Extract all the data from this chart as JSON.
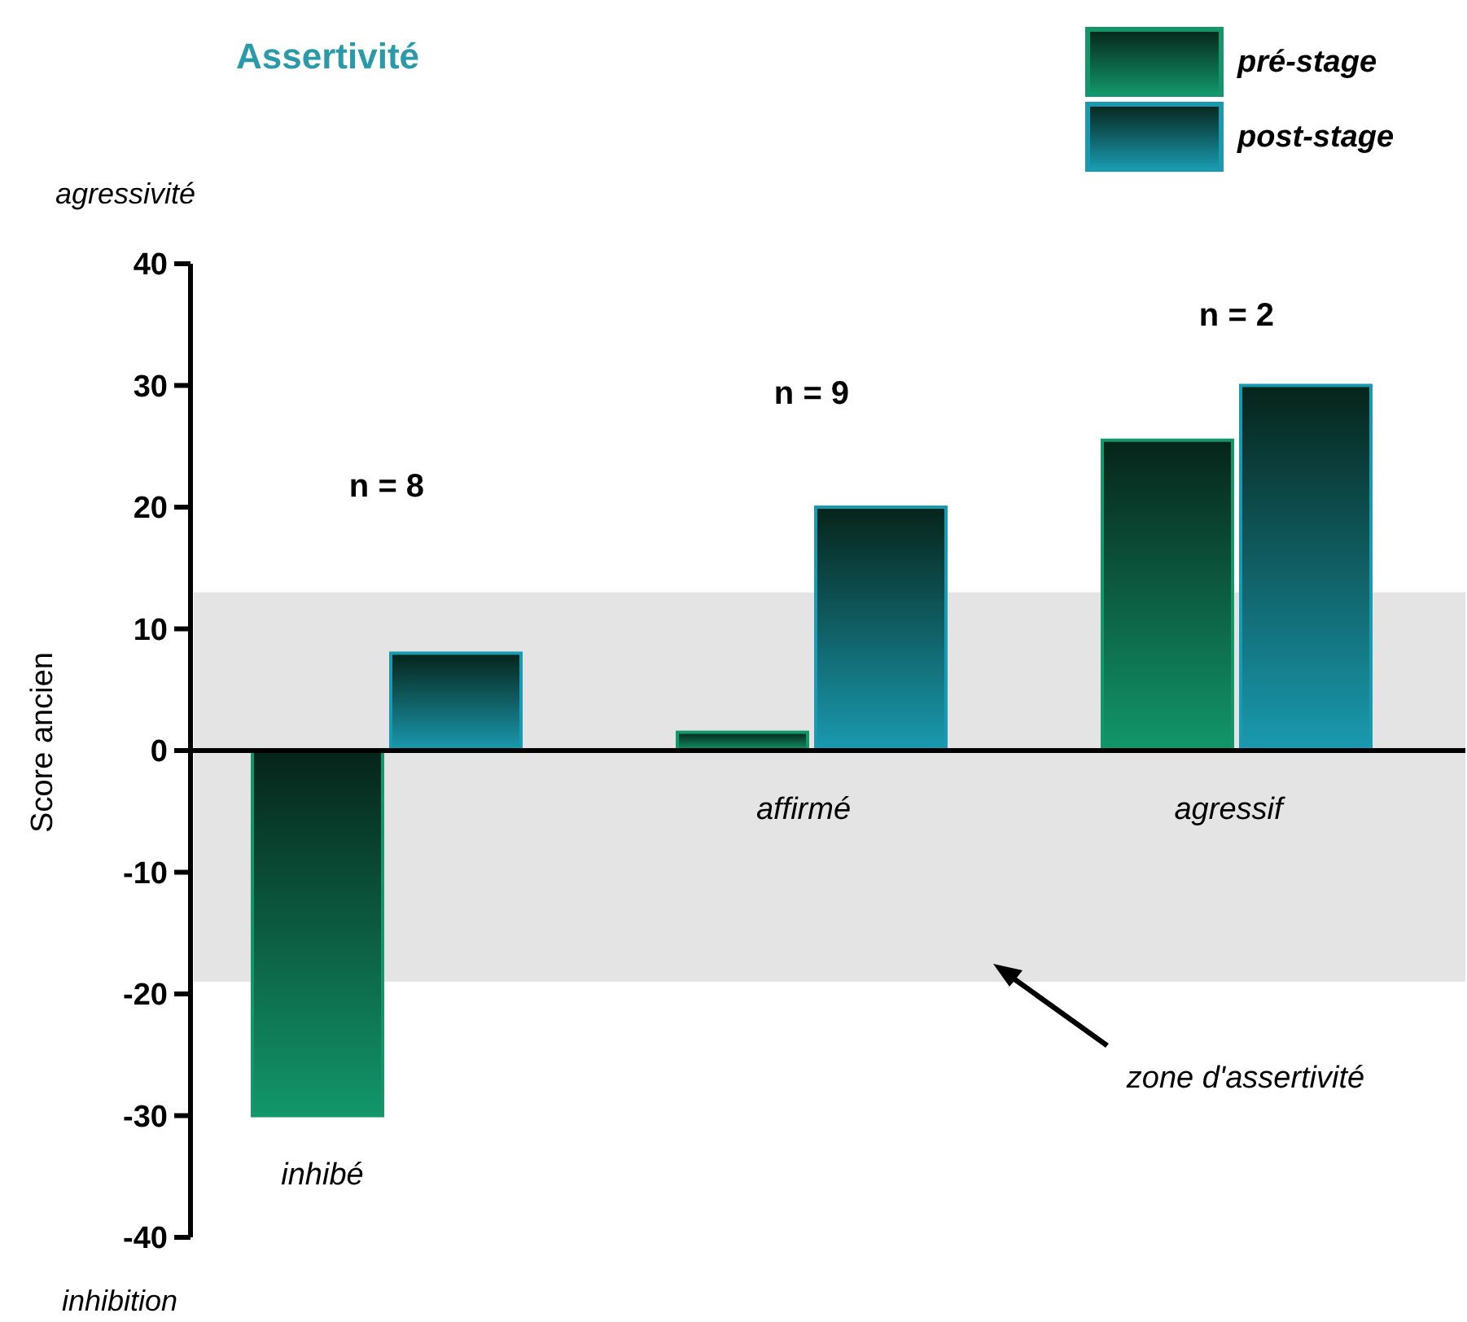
{
  "chart_data": {
    "type": "bar",
    "title": "Assertivité",
    "ylabel": "Score ancien",
    "categories": [
      "inhibé",
      "affirmé",
      "agressif"
    ],
    "series": [
      {
        "name": "pré-stage",
        "color": "#12966a",
        "values": [
          -30,
          1.5,
          25.5
        ]
      },
      {
        "name": "post-stage",
        "color": "#1a9ab0",
        "values": [
          8,
          20,
          30
        ]
      }
    ],
    "ylim": [
      -40,
      40
    ],
    "yticks": [
      -40,
      -30,
      -20,
      -10,
      0,
      10,
      20,
      30,
      40
    ],
    "bands": [
      {
        "axis": "y",
        "from": -19,
        "to": 13,
        "color": "#e4e4e4",
        "label": "zone d'assertivité"
      }
    ],
    "annotations": [
      "n = 8",
      "n = 9",
      "n = 2",
      "agressivité",
      "inhibition"
    ],
    "legend": "top right",
    "grid": false
  }
}
